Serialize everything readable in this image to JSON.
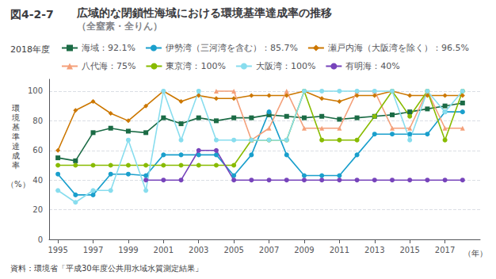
{
  "chart_data": {
    "type": "line",
    "figure_number": "図4-2-7",
    "title": "広域的な閉鎖性海域における環境基準達成率の推移",
    "subtitle": "（全窒素・全りん）",
    "ylabel": "環\n境\n基\n準\n達\n成\n率",
    "ylabel_unit": "（%）",
    "xlabel": "（年）",
    "source": "資料：環境省「平成30年度公共用水域水質測定結果」",
    "legend_title": "2018年度",
    "legend": "top",
    "grid": true,
    "x": [
      1995,
      1996,
      1997,
      1998,
      1999,
      2000,
      2001,
      2002,
      2003,
      2004,
      2005,
      2006,
      2007,
      2008,
      2009,
      2010,
      2011,
      2012,
      2013,
      2014,
      2015,
      2016,
      2017,
      2018
    ],
    "xlim": [
      1994.5,
      2019.0
    ],
    "xticks": [
      1995,
      1997,
      1999,
      2001,
      2003,
      2005,
      2007,
      2009,
      2011,
      2013,
      2015,
      2017
    ],
    "ylim": [
      0,
      108
    ],
    "yticks": [
      0,
      20,
      40,
      60,
      80,
      100
    ],
    "series": [
      {
        "name": "海域：92.1%",
        "color": "#1b6b45",
        "marker": "square",
        "values": [
          55,
          53,
          72,
          75,
          73,
          72,
          82,
          78,
          82,
          80,
          82,
          82,
          84,
          83,
          82,
          83,
          81,
          82,
          83,
          84,
          86,
          88,
          90,
          92
        ]
      },
      {
        "name": "伊勢湾（三河湾を含む）：85.7%",
        "color": "#1a9fcc",
        "marker": "circle",
        "values": [
          44,
          30,
          30,
          44,
          44,
          43,
          57,
          57,
          57,
          57,
          43,
          57,
          86,
          57,
          43,
          43,
          43,
          57,
          71,
          71,
          71,
          71,
          86,
          86
        ]
      },
      {
        "name": "瀬戸内海（大阪湾を除く）：96.5%",
        "color": "#cc7700",
        "marker": "diamond",
        "values": [
          60,
          87,
          93,
          85,
          80,
          90,
          100,
          93,
          97,
          95,
          95,
          97,
          97,
          97,
          100,
          95,
          93,
          97,
          97,
          100,
          97,
          97,
          97,
          97
        ]
      },
      {
        "name": "八代海：75%",
        "color": "#f4a07a",
        "marker": "triangle",
        "values": [
          null,
          null,
          null,
          null,
          null,
          null,
          null,
          null,
          null,
          100,
          100,
          67,
          75,
          100,
          75,
          75,
          75,
          100,
          100,
          75,
          75,
          100,
          75,
          75
        ]
      },
      {
        "name": "東京湾：100%",
        "color": "#88bb00",
        "marker": "circle",
        "values": [
          50,
          50,
          50,
          50,
          50,
          50,
          50,
          50,
          50,
          50,
          50,
          67,
          67,
          67,
          100,
          67,
          67,
          67,
          83,
          100,
          83,
          100,
          67,
          100
        ]
      },
      {
        "name": "大阪湾：100%",
        "color": "#88ddee",
        "marker": "circle",
        "values": [
          33,
          25,
          33,
          33,
          67,
          33,
          100,
          67,
          100,
          67,
          67,
          67,
          67,
          67,
          100,
          100,
          100,
          100,
          100,
          100,
          67,
          100,
          86,
          100
        ]
      },
      {
        "name": "有明海：40%",
        "color": "#7744bb",
        "marker": "circle",
        "values": [
          null,
          null,
          null,
          null,
          null,
          40,
          40,
          40,
          60,
          60,
          40,
          40,
          40,
          40,
          40,
          40,
          40,
          40,
          40,
          40,
          40,
          40,
          40,
          40
        ]
      }
    ]
  }
}
